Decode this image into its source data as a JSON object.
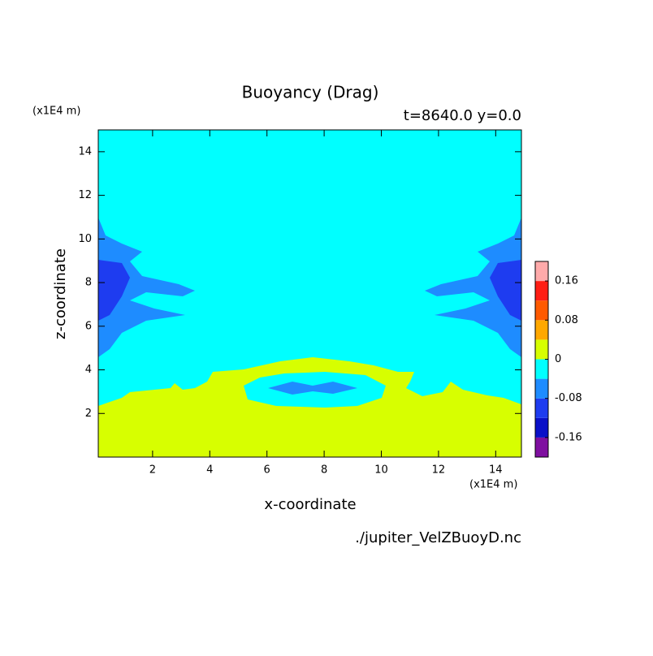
{
  "chart_data": {
    "type": "contour",
    "title": "Buoyancy (Drag)",
    "subtitle": "t=8640.0 y=0.0",
    "x_label": "x-coordinate",
    "y_label": "z-coordinate",
    "x_unit": "(x1E4 m)",
    "y_unit": "(x1E4 m)",
    "source": "./jupiter_VelZBuoyD.nc",
    "xlim": [
      0.1,
      14.9
    ],
    "ylim": [
      0,
      15
    ],
    "xticks": [
      2,
      4,
      6,
      8,
      10,
      12,
      14
    ],
    "yticks": [
      2,
      4,
      6,
      8,
      10,
      12,
      14
    ],
    "colorbar": {
      "levels": [
        -0.2,
        -0.16,
        -0.12,
        -0.08,
        -0.04,
        0,
        0.04,
        0.08,
        0.12,
        0.16,
        0.2
      ],
      "colors": [
        "#7f0fa0",
        "#0a10c8",
        "#1e3cf0",
        "#1e8cff",
        "#00ffff",
        "#d7ff00",
        "#ffa800",
        "#ff5a00",
        "#ff1e14",
        "#ffaaaa"
      ],
      "ticks": [
        -0.16,
        -0.08,
        0,
        0.08,
        0.16
      ]
    }
  }
}
